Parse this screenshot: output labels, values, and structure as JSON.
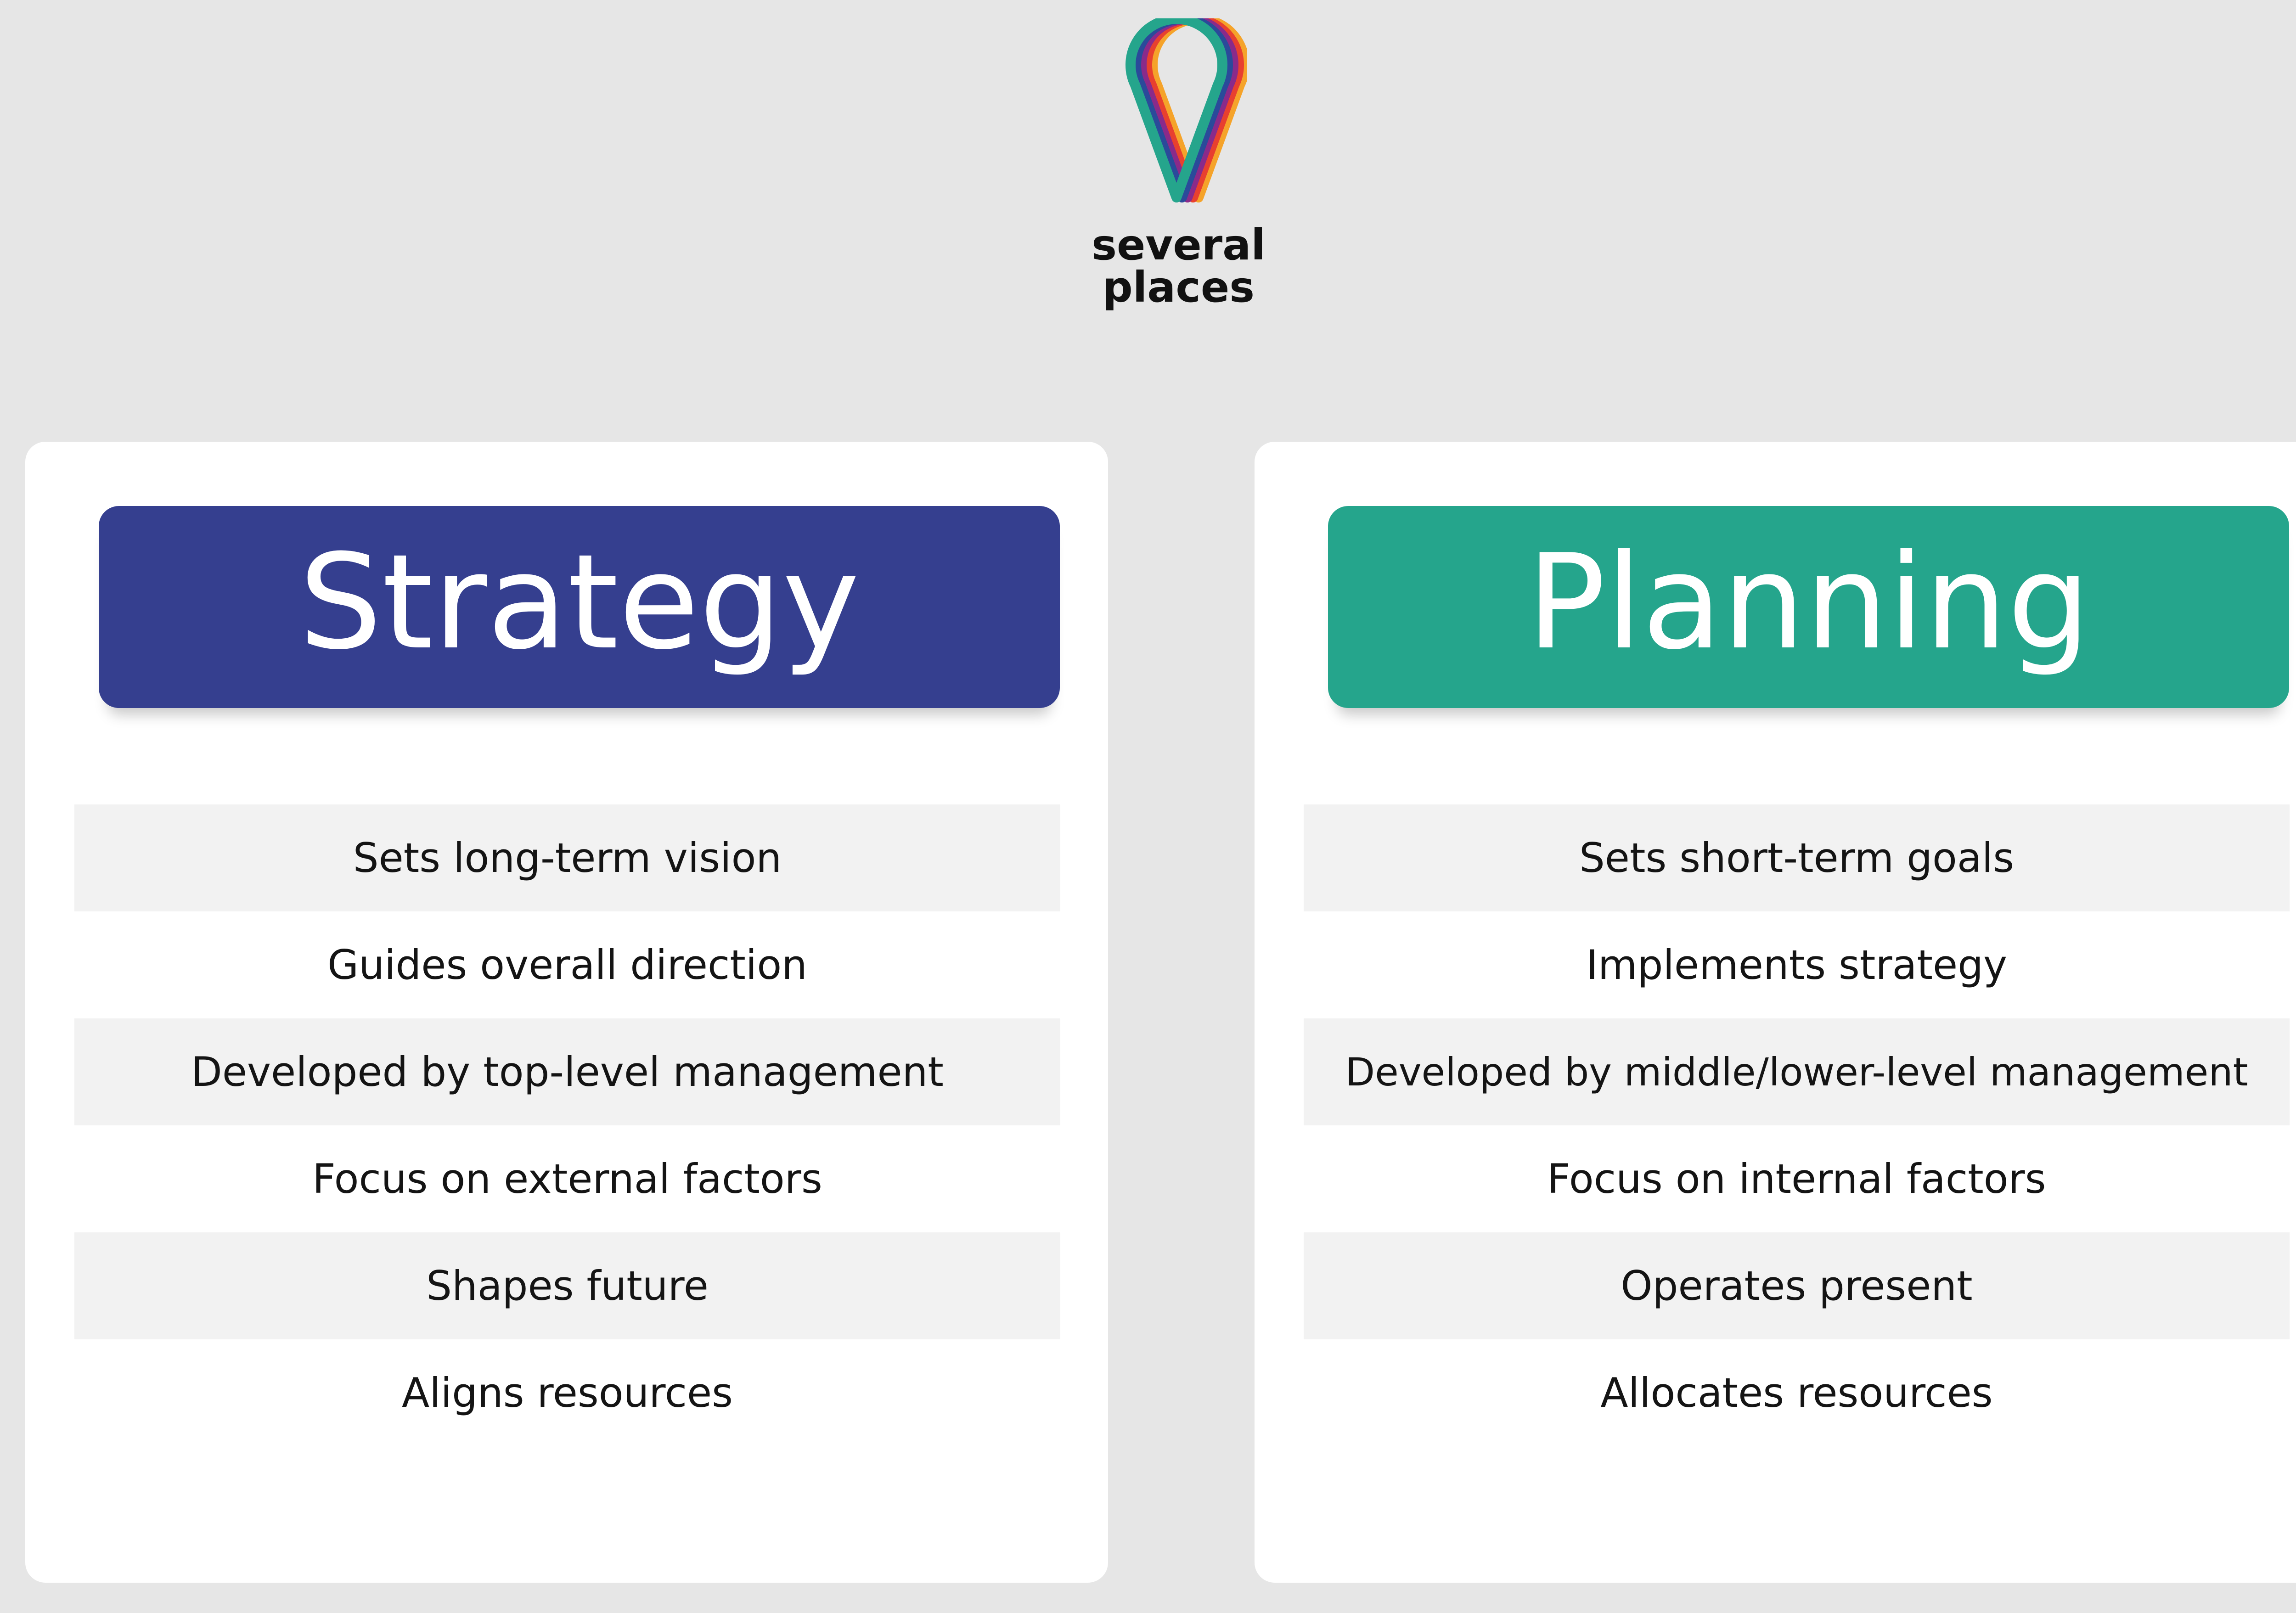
{
  "logo": {
    "line1": "several",
    "line2": "places"
  },
  "colors": {
    "background": "#e6e6e6",
    "strategy_header": "#353f8f",
    "planning_header": "#25a58c",
    "row_shade": "#f2f2f2",
    "logo_stripes": [
      "#f5a32a",
      "#e8402f",
      "#8a2a8a",
      "#2a4a9a",
      "#25a58c"
    ]
  },
  "strategy": {
    "title": "Strategy",
    "items": [
      "Sets long-term vision",
      "Guides overall direction",
      "Developed by top-level management",
      "Focus on external factors",
      "Shapes future",
      "Aligns resources"
    ]
  },
  "planning": {
    "title": "Planning",
    "items": [
      "Sets short-term goals",
      "Implements strategy",
      "Developed by middle/lower-level management",
      "Focus on internal factors",
      "Operates present",
      "Allocates resources"
    ]
  }
}
